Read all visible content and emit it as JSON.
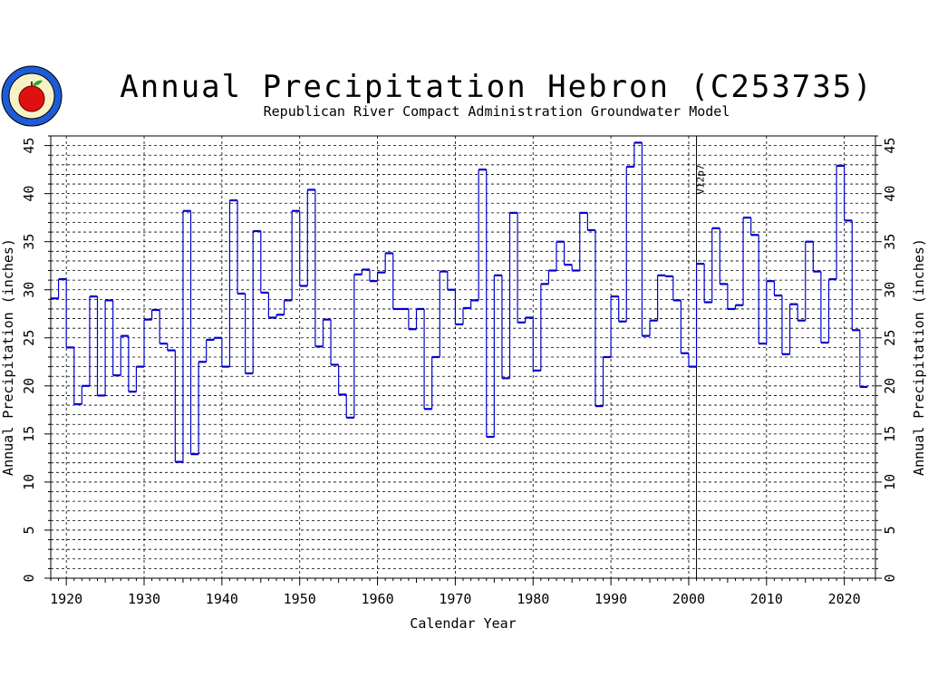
{
  "chart_data": {
    "type": "line",
    "step": true,
    "title": "Annual Precipitation Hebron (C253735)",
    "subtitle": "Republican River Compact Administration Groundwater Model",
    "xlabel": "Calendar Year",
    "ylabel": "Annual Precipitation (inches)",
    "ylabel_right": "Annual Precipitation (inches)",
    "xlim": [
      1918,
      2024
    ],
    "ylim": [
      0,
      46
    ],
    "xticks": [
      1920,
      1930,
      1940,
      1950,
      1960,
      1970,
      1980,
      1990,
      2000,
      2010,
      2020
    ],
    "yticks": [
      0,
      5,
      10,
      15,
      20,
      25,
      30,
      35,
      40,
      45
    ],
    "grid": true,
    "annotation": {
      "text": "V12p7",
      "x": 2001
    },
    "series_color": "#0000cc",
    "logo": "rrca-apple-seal",
    "years": [
      1918,
      1919,
      1920,
      1921,
      1922,
      1923,
      1924,
      1925,
      1926,
      1927,
      1928,
      1929,
      1930,
      1931,
      1932,
      1933,
      1934,
      1935,
      1936,
      1937,
      1938,
      1939,
      1940,
      1941,
      1942,
      1943,
      1944,
      1945,
      1946,
      1947,
      1948,
      1949,
      1950,
      1951,
      1952,
      1953,
      1954,
      1955,
      1956,
      1957,
      1958,
      1959,
      1960,
      1961,
      1962,
      1963,
      1964,
      1965,
      1966,
      1967,
      1968,
      1969,
      1970,
      1971,
      1972,
      1973,
      1974,
      1975,
      1976,
      1977,
      1978,
      1979,
      1980,
      1981,
      1982,
      1983,
      1984,
      1985,
      1986,
      1987,
      1988,
      1989,
      1990,
      1991,
      1992,
      1993,
      1994,
      1995,
      1996,
      1997,
      1998,
      1999,
      2000,
      2001,
      2002,
      2003,
      2004,
      2005,
      2006,
      2007,
      2008,
      2009,
      2010,
      2011,
      2012,
      2013,
      2014,
      2015,
      2016,
      2017,
      2018,
      2019,
      2020,
      2021,
      2022
    ],
    "values": [
      29.1,
      31.1,
      24.0,
      18.1,
      20.0,
      29.3,
      19.0,
      28.9,
      21.1,
      25.2,
      19.4,
      22.0,
      26.9,
      27.9,
      24.4,
      23.7,
      12.1,
      38.2,
      12.9,
      22.5,
      24.8,
      25.0,
      22.0,
      39.3,
      29.6,
      21.3,
      36.1,
      29.7,
      27.1,
      27.4,
      28.9,
      38.2,
      30.4,
      40.4,
      24.1,
      26.9,
      22.2,
      19.1,
      16.7,
      31.6,
      32.1,
      30.9,
      31.8,
      33.8,
      28.0,
      28.0,
      25.9,
      28.0,
      17.6,
      23.0,
      31.9,
      30.0,
      26.4,
      28.1,
      28.9,
      42.5,
      14.7,
      31.5,
      20.8,
      38.0,
      26.6,
      27.1,
      21.6,
      30.6,
      32.0,
      35.0,
      32.6,
      32.0,
      38.0,
      36.2,
      17.9,
      23.0,
      29.3,
      26.7,
      42.8,
      45.3,
      25.2,
      26.8,
      31.5,
      31.4,
      28.9,
      23.4,
      22.0,
      32.7,
      28.7,
      36.4,
      30.6,
      28.0,
      28.4,
      37.5,
      35.7,
      24.4,
      30.9,
      29.4,
      23.3,
      28.5,
      26.8,
      35.0,
      31.9,
      24.5,
      31.1,
      42.9,
      37.2,
      25.8,
      19.9
    ]
  }
}
